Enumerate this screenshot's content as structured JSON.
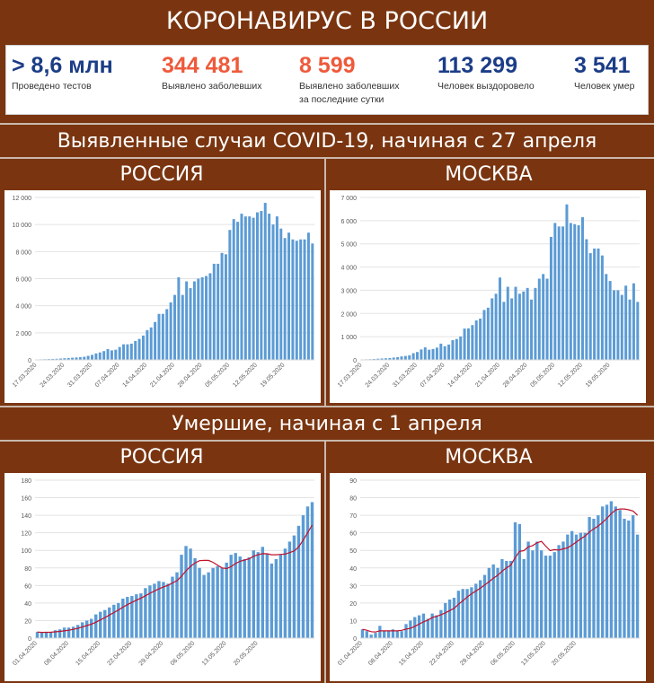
{
  "title": "КОРОНАВИРУС В РОССИИ",
  "stats": [
    {
      "value": "> 8,6 млн",
      "label": "Проведено тестов",
      "label2": "",
      "color": "#1b3d87"
    },
    {
      "value": "344 481",
      "label": "Выявлено заболевших",
      "label2": "",
      "color": "#ee5a3b"
    },
    {
      "value": "8 599",
      "label": "Выявлено заболевших",
      "label2": "за последние сутки",
      "color": "#ee5a3b"
    },
    {
      "value": "113 299",
      "label": "Человек выздоровело",
      "label2": "",
      "color": "#1b3d87"
    },
    {
      "value": "3 541",
      "label": "Человек умер",
      "label2": "",
      "color": "#1b3d87"
    }
  ],
  "sections": {
    "cases": "Выявленные случаи COVID-19, начиная с 27 апреля",
    "deaths": "Умершие, начиная с 1 апреля"
  },
  "regions": {
    "russia": "РОССИЯ",
    "moscow": "МОСКВА"
  },
  "colors": {
    "bar": "#5b9bd5",
    "trend": "#c0102a",
    "background": "#7a3510"
  },
  "chart_data": [
    {
      "type": "bar",
      "region": "РОССИЯ",
      "ylim": [
        0,
        12000
      ],
      "yticks": [
        0,
        2000,
        4000,
        6000,
        8000,
        10000,
        12000
      ],
      "ytick_labels": [
        "0",
        "2 000",
        "4 000",
        "6 000",
        "8 000",
        "10 000",
        "12 000"
      ],
      "x_start": "17.03.2020",
      "xtick_labels": [
        "17.03.2020",
        "24.03.2020",
        "31.03.2020",
        "07.04.2020",
        "14.04.2020",
        "21.04.2020",
        "28.04.2020",
        "05.05.2020",
        "12.05.2020",
        "19.05.2020"
      ],
      "values": [
        30,
        40,
        50,
        60,
        70,
        80,
        100,
        120,
        140,
        160,
        180,
        200,
        230,
        300,
        370,
        480,
        550,
        650,
        800,
        700,
        750,
        950,
        1150,
        1150,
        1200,
        1400,
        1550,
        1800,
        2200,
        2400,
        2800,
        3400,
        3400,
        3750,
        4250,
        4800,
        6100,
        4800,
        5800,
        5300,
        5800,
        6000,
        6100,
        6200,
        6400,
        7100,
        7100,
        7900,
        7800,
        9600,
        10400,
        10200,
        10800,
        10600,
        10600,
        10500,
        10900,
        11000,
        11600,
        10800,
        10000,
        10600,
        9700,
        9000,
        9400,
        8900,
        8800,
        8900,
        8900,
        9400,
        8600
      ]
    },
    {
      "type": "bar",
      "region": "МОСКВА",
      "ylim": [
        0,
        7000
      ],
      "yticks": [
        0,
        1000,
        2000,
        3000,
        4000,
        5000,
        6000,
        7000
      ],
      "ytick_labels": [
        "0",
        "1 000",
        "2 000",
        "3 000",
        "4 000",
        "5 000",
        "6 000",
        "7 000"
      ],
      "x_start": "17.03.2020",
      "xtick_labels": [
        "17.03.2020",
        "24.03.2020",
        "31.03.2020",
        "07.04.2020",
        "14.04.2020",
        "21.04.2020",
        "28.04.2020",
        "05.05.2020",
        "12.05.2020",
        "19.05.2020"
      ],
      "values": [
        20,
        25,
        30,
        40,
        50,
        60,
        70,
        80,
        100,
        120,
        150,
        170,
        200,
        290,
        340,
        450,
        540,
        440,
        470,
        530,
        700,
        590,
        660,
        850,
        900,
        1010,
        1350,
        1360,
        1500,
        1700,
        1780,
        2150,
        2250,
        2650,
        2850,
        3550,
        2500,
        3150,
        2650,
        3150,
        2850,
        2950,
        3100,
        2600,
        3100,
        3500,
        3700,
        3500,
        5300,
        5900,
        5750,
        5750,
        6700,
        5900,
        5850,
        5800,
        6150,
        5200,
        4600,
        4800,
        4800,
        4500,
        3700,
        3400,
        3000,
        3000,
        2800,
        3200,
        2600,
        3300,
        2500
      ]
    },
    {
      "type": "bar",
      "region": "РОССИЯ",
      "ylim": [
        0,
        180
      ],
      "yticks": [
        0,
        20,
        40,
        60,
        80,
        100,
        120,
        140,
        160,
        180
      ],
      "ytick_labels": [
        "0",
        "20",
        "40",
        "60",
        "80",
        "100",
        "120",
        "140",
        "160",
        "180"
      ],
      "x_start": "01.04.2020",
      "xtick_labels": [
        "01.04.2020",
        "08.04.2020",
        "15.04.2020",
        "22.04.2020",
        "29.04.2020",
        "06.05.2020",
        "13.05.2020",
        "20.05.2020"
      ],
      "trend": true,
      "values": [
        7,
        6,
        7,
        7,
        9,
        10,
        12,
        12,
        13,
        15,
        18,
        20,
        22,
        27,
        30,
        32,
        35,
        38,
        40,
        45,
        47,
        48,
        50,
        51,
        57,
        60,
        62,
        65,
        64,
        62,
        70,
        75,
        95,
        105,
        102,
        91,
        80,
        72,
        75,
        80,
        82,
        80,
        86,
        95,
        97,
        93,
        90,
        92,
        100,
        98,
        104,
        96,
        85,
        90,
        95,
        102,
        110,
        117,
        128,
        140,
        150,
        155
      ]
    },
    {
      "type": "bar",
      "region": "МОСКВА",
      "ylim": [
        0,
        90
      ],
      "yticks": [
        0,
        10,
        20,
        30,
        40,
        50,
        60,
        70,
        80,
        90
      ],
      "ytick_labels": [
        "0",
        "10",
        "20",
        "30",
        "40",
        "50",
        "60",
        "70",
        "80",
        "90"
      ],
      "x_start": "01.04.2020",
      "xtick_labels": [
        "01.04.2020",
        "08.04.2020",
        "15.04.2020",
        "22.04.2020",
        "29.04.2020",
        "06.05.2020",
        "13.05.2020",
        "20.05.2020"
      ],
      "trend": true,
      "values": [
        5,
        4,
        2,
        3,
        7,
        4,
        4,
        5,
        4,
        4,
        8,
        10,
        12,
        13,
        14,
        11,
        14,
        13,
        16,
        20,
        22,
        23,
        27,
        28,
        28,
        29,
        31,
        33,
        36,
        40,
        42,
        40,
        45,
        44,
        44,
        66,
        65,
        45,
        55,
        50,
        55,
        50,
        47,
        47,
        49,
        53,
        55,
        59,
        61,
        59,
        60,
        60,
        69,
        68,
        70,
        75,
        76,
        78,
        75,
        73,
        68,
        67,
        70,
        59
      ]
    }
  ]
}
